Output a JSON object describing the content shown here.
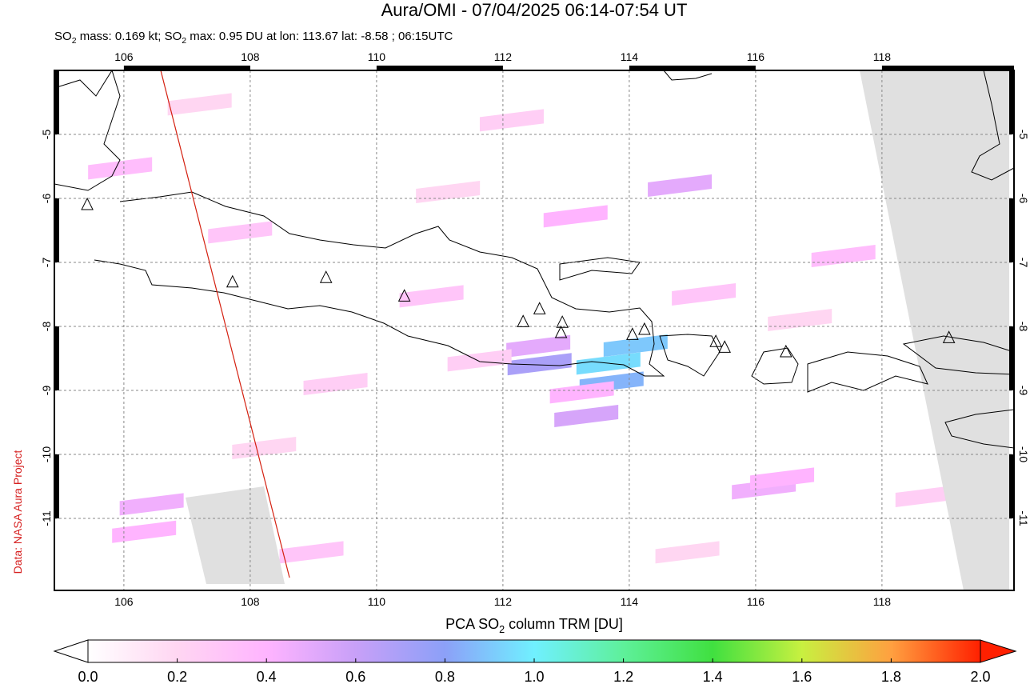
{
  "title": "Aura/OMI - 07/04/2025 06:14-07:54 UT",
  "subtitle": [
    "SO",
    "2",
    " mass: 0.169 kt; SO",
    "2",
    " max: 0.95 DU at lon: 113.67 lat: -8.58 ; 06:15UTC"
  ],
  "credit": "Data: NASA Aura Project",
  "map": {
    "lonlim": [
      104.9,
      120.09
    ],
    "latlim": [
      -12.125,
      -4.0
    ],
    "lonticks": [
      106,
      108,
      110,
      112,
      114,
      116,
      118
    ],
    "latticks": [
      -5,
      -6,
      -7,
      -8,
      -9,
      -10,
      -11
    ],
    "grid": true,
    "pixels": [
      {
        "lon": 112.58,
        "lat": -8.59,
        "value": 0.7
      },
      {
        "lon": 112.56,
        "lat": -8.31,
        "value": 0.5
      },
      {
        "lon": 113.67,
        "lat": -8.58,
        "value": 0.95
      },
      {
        "lon": 114.1,
        "lat": -8.3,
        "value": 0.9
      },
      {
        "lon": 113.72,
        "lat": -8.88,
        "value": 0.85
      },
      {
        "lon": 113.32,
        "lat": -9.4,
        "value": 0.55
      },
      {
        "lon": 113.25,
        "lat": -9.03,
        "value": 0.4
      },
      {
        "lon": 113.15,
        "lat": -6.28,
        "value": 0.4
      },
      {
        "lon": 114.8,
        "lat": -5.8,
        "value": 0.5
      },
      {
        "lon": 116.13,
        "lat": -10.53,
        "value": 0.45
      },
      {
        "lon": 116.42,
        "lat": -10.38,
        "value": 0.4
      },
      {
        "lon": 117.39,
        "lat": -6.9,
        "value": 0.35
      },
      {
        "lon": 115.18,
        "lat": -7.5,
        "value": 0.3
      },
      {
        "lon": 106.44,
        "lat": -10.78,
        "value": 0.45
      },
      {
        "lon": 106.32,
        "lat": -11.21,
        "value": 0.4
      },
      {
        "lon": 108.97,
        "lat": -11.53,
        "value": 0.3
      },
      {
        "lon": 111.63,
        "lat": -8.53,
        "value": 0.25
      },
      {
        "lon": 110.87,
        "lat": -7.53,
        "value": 0.3
      },
      {
        "lon": 107.84,
        "lat": -6.53,
        "value": 0.3
      },
      {
        "lon": 105.94,
        "lat": -5.53,
        "value": 0.35
      },
      {
        "lon": 112.14,
        "lat": -4.78,
        "value": 0.25
      },
      {
        "lon": 109.35,
        "lat": -8.9,
        "value": 0.25
      },
      {
        "lon": 118.72,
        "lat": -10.65,
        "value": 0.25
      },
      {
        "lon": 114.92,
        "lat": -11.53,
        "value": 0.2
      },
      {
        "lon": 111.13,
        "lat": -5.9,
        "value": 0.2
      },
      {
        "lon": 108.22,
        "lat": -9.9,
        "value": 0.2
      },
      {
        "lon": 116.7,
        "lat": -7.9,
        "value": 0.2
      },
      {
        "lon": 107.2,
        "lat": -4.53,
        "value": 0.2
      }
    ],
    "volcanoes": [
      {
        "lon": 105.42,
        "lat": -6.1
      },
      {
        "lon": 107.72,
        "lat": -7.31
      },
      {
        "lon": 109.2,
        "lat": -7.24
      },
      {
        "lon": 110.44,
        "lat": -7.53
      },
      {
        "lon": 112.32,
        "lat": -7.93
      },
      {
        "lon": 112.58,
        "lat": -7.73
      },
      {
        "lon": 112.94,
        "lat": -7.94
      },
      {
        "lon": 112.92,
        "lat": -8.1
      },
      {
        "lon": 114.05,
        "lat": -8.13
      },
      {
        "lon": 114.24,
        "lat": -8.05
      },
      {
        "lon": 115.37,
        "lat": -8.24
      },
      {
        "lon": 115.51,
        "lat": -8.33
      },
      {
        "lon": 116.48,
        "lat": -8.4
      },
      {
        "lon": 119.06,
        "lat": -8.18
      }
    ]
  },
  "colorbar": {
    "title": [
      "PCA SO",
      "2",
      " column TRM [DU]"
    ],
    "range": [
      0,
      2
    ],
    "ticks": [
      {
        "value": 0,
        "label": "0.0"
      },
      0.2,
      0.4,
      0.6,
      0.8,
      {
        "value": 1,
        "label": "1.0"
      },
      1.2,
      1.4,
      1.6,
      1.8,
      {
        "value": 2,
        "label": "2.0"
      }
    ],
    "colors": [
      "#ffffff",
      "#ffd6f2",
      "#ffb4ff",
      "#c8a0f8",
      "#8ca0f8",
      "#70f0ff",
      "#5ef09a",
      "#40e040",
      "#c8f040",
      "#ffa040",
      "#ff2000"
    ]
  }
}
